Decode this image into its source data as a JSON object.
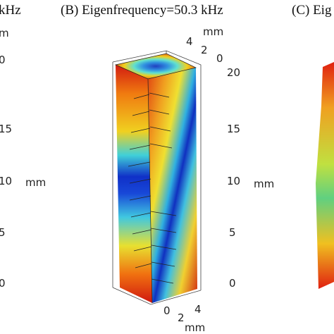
{
  "left_panel": {
    "title_fragment": "kHz",
    "axis_unit_top": "m",
    "z_labels": [
      "0",
      "15",
      "10",
      "5",
      "0"
    ],
    "z_unit": "mm"
  },
  "center_panel": {
    "title": "(B) Eigenfrequency=50.3 kHz",
    "top_axis": {
      "unit": "mm",
      "labels": [
        "4",
        "2",
        "0"
      ]
    },
    "z_axis": {
      "labels": [
        "20",
        "15",
        "10",
        "5",
        "0"
      ],
      "unit": "mm"
    },
    "bottom_axis": {
      "labels": [
        "0",
        "2",
        "4"
      ],
      "unit": "mm"
    }
  },
  "right_panel": {
    "title_fragment": "(C) Eig"
  }
}
